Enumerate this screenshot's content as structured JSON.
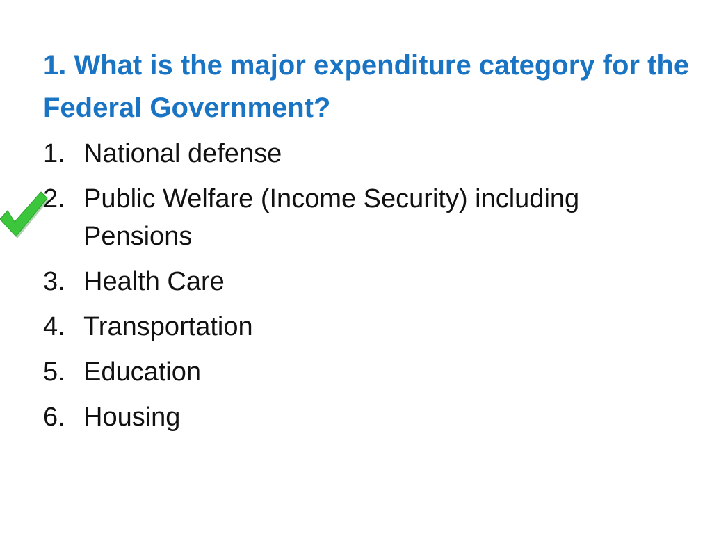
{
  "slide": {
    "question": "1. What is the major expenditure category for the Federal Government?",
    "options": [
      {
        "number": "1.",
        "text": "National defense"
      },
      {
        "number": "2.",
        "text": "Public Welfare (Income Security) including Pensions"
      },
      {
        "number": "3.",
        "text": "Health Care"
      },
      {
        "number": "4.",
        "text": "Transportation"
      },
      {
        "number": "5.",
        "text": "Education"
      },
      {
        "number": "6.",
        "text": "Housing"
      }
    ],
    "correct_marker": {
      "icon": "checkmark-icon",
      "color": "#3cc63c",
      "option_index": 1
    },
    "colors": {
      "question": "#1a74c4",
      "text": "#111111",
      "background": "#ffffff"
    }
  }
}
